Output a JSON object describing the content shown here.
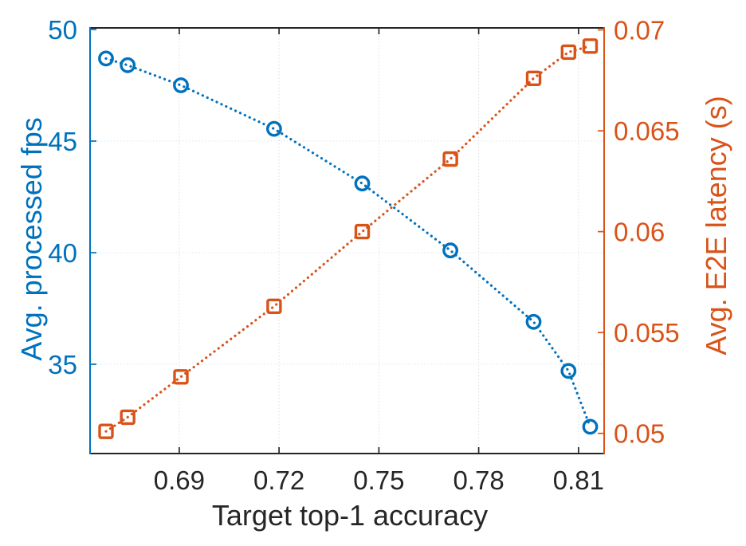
{
  "figure": {
    "background": "#ffffff"
  },
  "chart_data": {
    "type": "line",
    "title": "",
    "xlabel": "Target top-1 accuracy",
    "ylabel_left": "Avg. processed fps",
    "ylabel_right": "Avg. E2E latency (s)",
    "grid": true,
    "legend": "none",
    "x": [
      0.668,
      0.6745,
      0.6905,
      0.7185,
      0.745,
      0.7715,
      0.7965,
      0.807,
      0.8135
    ],
    "series": [
      {
        "name": "Avg. processed fps",
        "axis": "left",
        "marker": "circle",
        "line_style": "dotted",
        "color": "#0072BD",
        "values": [
          48.7,
          48.4,
          47.5,
          45.55,
          43.1,
          40.1,
          36.9,
          34.7,
          32.2
        ]
      },
      {
        "name": "Avg. E2E latency (s)",
        "axis": "right",
        "marker": "square",
        "line_style": "dotted",
        "color": "#D95319",
        "values": [
          0.0501,
          0.0508,
          0.0528,
          0.0563,
          0.06,
          0.0636,
          0.0676,
          0.0689,
          0.0692
        ]
      }
    ],
    "x_axis": {
      "ticks": [
        0.69,
        0.72,
        0.75,
        0.78,
        0.81
      ],
      "tick_labels": [
        "0.69",
        "0.72",
        "0.75",
        "0.78",
        "0.81"
      ],
      "lim": [
        0.6632,
        0.8177
      ],
      "color": "#262626"
    },
    "y_left": {
      "ticks": [
        35,
        40,
        45,
        50
      ],
      "tick_labels": [
        "35",
        "40",
        "45",
        "50"
      ],
      "lim": [
        31.0,
        50.07
      ],
      "color": "#0072BD"
    },
    "y_right": {
      "ticks": [
        0.05,
        0.055,
        0.06,
        0.065,
        0.07
      ],
      "tick_labels": [
        "0.05",
        "0.055",
        "0.06",
        "0.065",
        "0.07"
      ],
      "lim": [
        0.049,
        0.0701
      ],
      "color": "#D95319"
    }
  }
}
